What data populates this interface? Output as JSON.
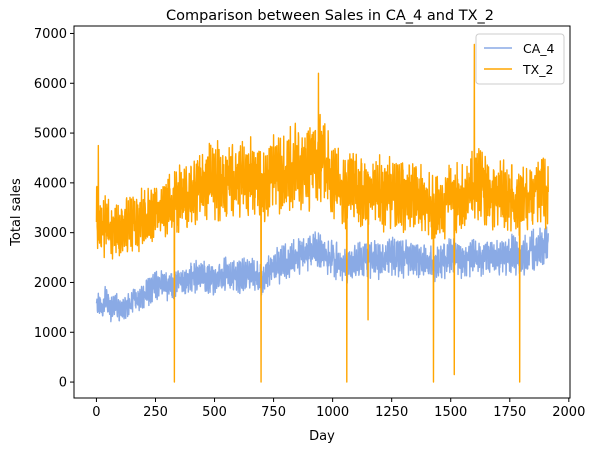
{
  "chart_data": {
    "type": "line",
    "title": "Comparison between Sales in CA_4 and TX_2",
    "xlabel": "Day",
    "ylabel": "Total sales",
    "xlim": [
      -95,
      2005
    ],
    "ylim": [
      -320,
      7150
    ],
    "xticks": [
      0,
      250,
      500,
      750,
      1000,
      1250,
      1500,
      1750,
      2000
    ],
    "yticks": [
      0,
      1000,
      2000,
      3000,
      4000,
      5000,
      6000,
      7000
    ],
    "grid": false,
    "legend_position": "upper right",
    "series": [
      {
        "name": "CA_4",
        "color": "#8aaae5",
        "x": [
          0,
          20,
          40,
          60,
          80,
          100,
          120,
          140,
          160,
          180,
          200,
          220,
          240,
          260,
          280,
          300,
          320,
          340,
          360,
          380,
          400,
          450,
          500,
          550,
          600,
          650,
          700,
          750,
          800,
          850,
          900,
          950,
          1000,
          1050,
          1100,
          1150,
          1200,
          1250,
          1300,
          1350,
          1400,
          1450,
          1500,
          1550,
          1600,
          1650,
          1700,
          1750,
          1800,
          1850,
          1900,
          1913
        ],
        "values": [
          1650,
          1500,
          1700,
          1450,
          1600,
          1400,
          1500,
          1550,
          1700,
          1600,
          1750,
          1800,
          1900,
          1950,
          2000,
          1900,
          1950,
          2000,
          2050,
          1950,
          2100,
          2150,
          2050,
          2200,
          2100,
          2200,
          2050,
          2300,
          2400,
          2500,
          2600,
          2650,
          2450,
          2350,
          2400,
          2500,
          2450,
          2550,
          2450,
          2500,
          2400,
          2350,
          2600,
          2400,
          2500,
          2550,
          2450,
          2600,
          2500,
          2650,
          2700,
          2750
        ],
        "spread": [
          200,
          200,
          220,
          200,
          200,
          180,
          200,
          200,
          220,
          200,
          220,
          220,
          230,
          230,
          240,
          230,
          240,
          240,
          240,
          240,
          260,
          270,
          270,
          280,
          270,
          280,
          270,
          300,
          310,
          320,
          330,
          340,
          320,
          300,
          310,
          320,
          310,
          320,
          310,
          320,
          310,
          300,
          330,
          310,
          320,
          320,
          310,
          330,
          320,
          340,
          340,
          340
        ]
      },
      {
        "name": "TX_2",
        "color": "#ffa500",
        "x": [
          0,
          20,
          40,
          60,
          80,
          100,
          120,
          140,
          160,
          180,
          200,
          220,
          240,
          260,
          280,
          300,
          320,
          340,
          360,
          380,
          400,
          450,
          500,
          550,
          600,
          650,
          700,
          750,
          800,
          850,
          900,
          950,
          1000,
          1050,
          1100,
          1150,
          1200,
          1250,
          1300,
          1350,
          1400,
          1450,
          1500,
          1550,
          1600,
          1650,
          1700,
          1750,
          1800,
          1850,
          1900,
          1913
        ],
        "values": [
          3350,
          3000,
          3200,
          2950,
          3100,
          3000,
          3200,
          3150,
          3300,
          3200,
          3350,
          3300,
          3400,
          3500,
          3450,
          3600,
          3500,
          3550,
          3700,
          3600,
          3800,
          4000,
          4100,
          3950,
          4150,
          4100,
          3900,
          4250,
          4200,
          4350,
          4300,
          4500,
          4100,
          3850,
          3850,
          3750,
          3800,
          3750,
          3700,
          3800,
          3550,
          3500,
          3700,
          3750,
          3950,
          3800,
          3750,
          3700,
          3650,
          3800,
          3850,
          3900
        ],
        "spread": [
          520,
          480,
          500,
          460,
          470,
          460,
          480,
          480,
          500,
          490,
          510,
          500,
          520,
          540,
          540,
          560,
          550,
          560,
          580,
          570,
          600,
          640,
          660,
          640,
          660,
          660,
          620,
          680,
          680,
          700,
          700,
          720,
          660,
          620,
          620,
          600,
          600,
          600,
          590,
          600,
          570,
          560,
          590,
          600,
          630,
          610,
          600,
          590,
          580,
          600,
          610,
          620
        ],
        "spikes": [
          {
            "x": 8,
            "y": 4750
          },
          {
            "x": 330,
            "y": 0
          },
          {
            "x": 697,
            "y": 0
          },
          {
            "x": 940,
            "y": 6200
          },
          {
            "x": 1060,
            "y": 0
          },
          {
            "x": 1150,
            "y": 1250
          },
          {
            "x": 1427,
            "y": 0
          },
          {
            "x": 1515,
            "y": 150
          },
          {
            "x": 1600,
            "y": 6780
          },
          {
            "x": 1792,
            "y": 0
          }
        ]
      }
    ]
  }
}
